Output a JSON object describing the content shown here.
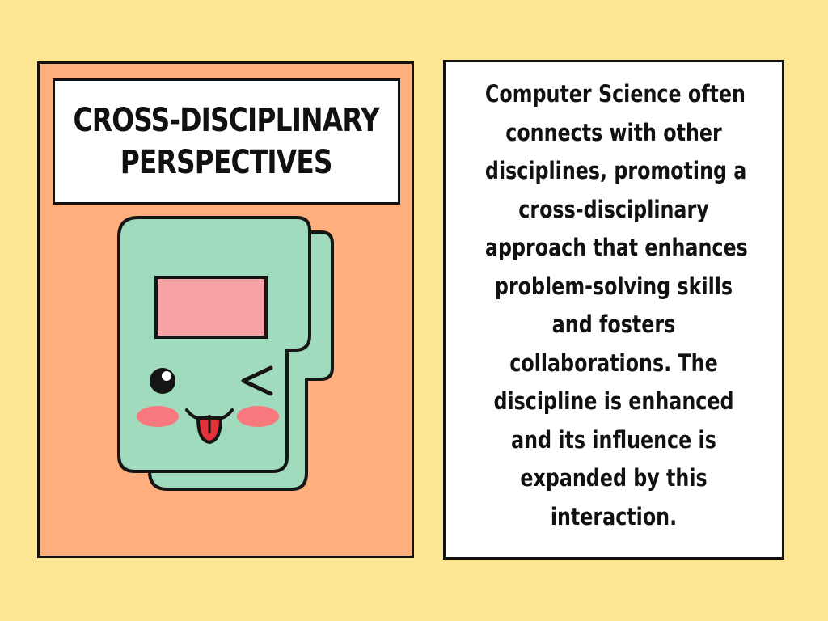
{
  "title": {
    "line1": "CROSS-DISCIPLINARY",
    "line2": "PERSPECTIVES"
  },
  "illustration": {
    "icon": "kawaii-computer-icon",
    "colors": {
      "background_page": "#FCE694",
      "left_card": "#FFAF7E",
      "device": "#A1DBBE",
      "screen": "#F7A3A6",
      "cheeks": "#F7797D",
      "tongue": "#E2313A",
      "outline": "#151515"
    }
  },
  "description": {
    "lines": [
      "Computer Science often",
      "connects with other",
      "disciplines, promoting a",
      "cross-disciplinary",
      "approach that enhances",
      "problem-solving skills",
      "and fosters",
      "collaborations. The",
      "discipline is enhanced",
      "and its influence is",
      "expanded by this",
      "interaction."
    ]
  }
}
